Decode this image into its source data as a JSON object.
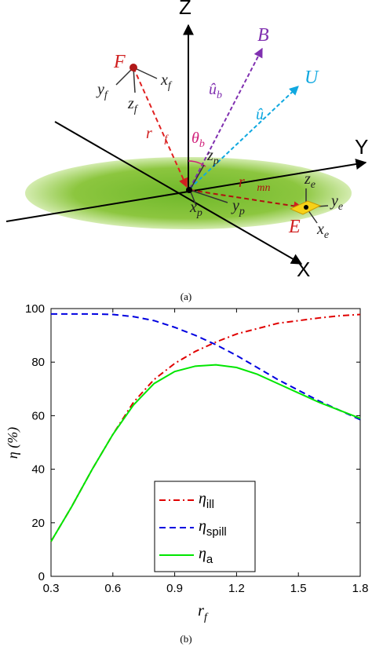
{
  "diagram": {
    "labels": [
      {
        "text": "Z"
      },
      {
        "text": "Y"
      },
      {
        "text": "X"
      },
      {
        "text": "B"
      },
      {
        "text": "U"
      },
      {
        "text": "F"
      },
      {
        "text": "E"
      },
      {
        "text": "x",
        "sub": "f"
      },
      {
        "text": "y",
        "sub": "f"
      },
      {
        "text": "z",
        "sub": "f"
      },
      {
        "text": "û",
        "sub": "b"
      },
      {
        "text": "û"
      },
      {
        "text": "r⃗",
        "sub": "f"
      },
      {
        "text": "θ",
        "sub": "b"
      },
      {
        "text": "z",
        "sub": "p"
      },
      {
        "text": "x",
        "sub": "p"
      },
      {
        "text": "y",
        "sub": "p"
      },
      {
        "text": "r⃗",
        "sub": "mn"
      },
      {
        "text": "z",
        "sub": "e"
      },
      {
        "text": "y",
        "sub": "e"
      },
      {
        "text": "x",
        "sub": "e"
      }
    ],
    "caption": "(a)"
  },
  "chart_data": {
    "type": "line",
    "x": [
      0.3,
      0.4,
      0.5,
      0.6,
      0.7,
      0.8,
      0.9,
      1.0,
      1.1,
      1.2,
      1.3,
      1.4,
      1.5,
      1.6,
      1.7,
      1.8
    ],
    "series": [
      {
        "name": "η",
        "sub": "ill",
        "color": "#e00000",
        "style": "dashdot",
        "values": [
          13,
          26,
          40,
          53,
          65,
          73.5,
          79.5,
          84,
          87.5,
          90.5,
          92.5,
          94.5,
          95.5,
          96.5,
          97.3,
          97.8
        ]
      },
      {
        "name": "η",
        "sub": "spill",
        "color": "#0000e0",
        "style": "dashed",
        "values": [
          98,
          98,
          98,
          97.8,
          97,
          95.5,
          93,
          90,
          86.5,
          82.5,
          78,
          73.5,
          69.5,
          65.5,
          62,
          58.5
        ]
      },
      {
        "name": "η",
        "sub": "a",
        "color": "#00e600",
        "style": "solid",
        "values": [
          13,
          26,
          40,
          53,
          64,
          72,
          76.5,
          78.5,
          79,
          78,
          75.5,
          72,
          68.5,
          65,
          62,
          59
        ]
      }
    ],
    "xlim": [
      0.3,
      1.8
    ],
    "xticks": [
      0.3,
      0.6,
      0.9,
      1.2,
      1.5,
      1.8
    ],
    "ylim": [
      0,
      100
    ],
    "yticks": [
      0,
      20,
      40,
      60,
      80,
      100
    ],
    "y_label": "η (%)",
    "x_label": {
      "text": "r",
      "sub": "f"
    },
    "caption": "(b)"
  }
}
